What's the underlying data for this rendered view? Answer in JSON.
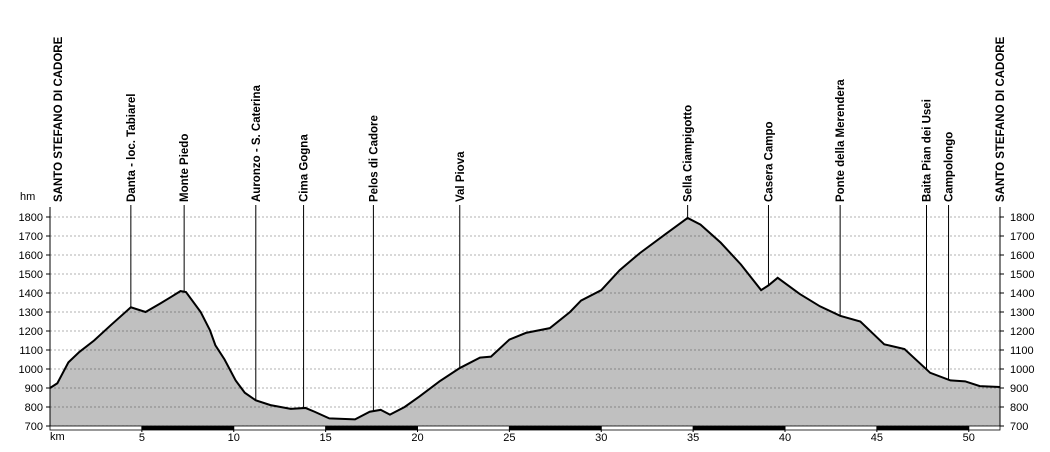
{
  "chart_data": {
    "type": "area",
    "y_label": "hm",
    "x_label": "km",
    "xlim": [
      0,
      51.7
    ],
    "ylim": [
      700,
      1800
    ],
    "xticks": [
      5,
      10,
      15,
      20,
      25,
      30,
      35,
      40,
      45,
      50
    ],
    "yticks": [
      700,
      800,
      900,
      1000,
      1100,
      1200,
      1300,
      1400,
      1500,
      1600,
      1700,
      1800
    ],
    "grid": true,
    "fill_color": "#c0c0c0",
    "line_color": "#000000",
    "x": [
      0,
      0.4,
      1.0,
      1.6,
      2.4,
      3.3,
      4.4,
      5.2,
      6.0,
      6.6,
      7.1,
      7.4,
      8.2,
      8.7,
      9.0,
      9.5,
      10.1,
      10.6,
      11.2,
      12.0,
      13.1,
      13.9,
      14.4,
      15.2,
      16.6,
      17.4,
      18.0,
      18.5,
      19.3,
      20.1,
      21.2,
      22.3,
      23.4,
      24.0,
      25.0,
      25.9,
      27.2,
      28.3,
      28.9,
      30.0,
      31.0,
      32.1,
      33.5,
      34.7,
      35.4,
      36.5,
      37.6,
      38.7,
      39.1,
      39.6,
      40.8,
      41.9,
      43.0,
      44.1,
      45.4,
      46.5,
      47.9,
      49.0,
      49.8,
      50.6,
      51.7
    ],
    "values": [
      900,
      925,
      1035,
      1090,
      1150,
      1230,
      1325,
      1300,
      1345,
      1380,
      1410,
      1405,
      1300,
      1205,
      1125,
      1050,
      940,
      875,
      835,
      810,
      790,
      795,
      775,
      740,
      735,
      775,
      785,
      760,
      800,
      855,
      935,
      1005,
      1060,
      1065,
      1155,
      1190,
      1215,
      1300,
      1360,
      1415,
      1520,
      1610,
      1710,
      1795,
      1760,
      1665,
      1550,
      1415,
      1440,
      1480,
      1395,
      1330,
      1280,
      1250,
      1130,
      1105,
      980,
      940,
      935,
      910,
      905
    ],
    "waypoints": [
      {
        "name": "SANTO STEFANO DI CADORE",
        "km": 0
      },
      {
        "name": "Danta - loc. Tabiarel",
        "km": 4.4
      },
      {
        "name": "Monte Piedo",
        "km": 7.3
      },
      {
        "name": "Auronzo - S. Caterina",
        "km": 11.2
      },
      {
        "name": "Cima Gogna",
        "km": 13.8
      },
      {
        "name": "Pelos di Cadore",
        "km": 17.6
      },
      {
        "name": "Val Piova",
        "km": 22.3
      },
      {
        "name": "Sella Ciampigotto",
        "km": 34.7
      },
      {
        "name": "Casera Campo",
        "km": 39.1
      },
      {
        "name": "Ponte della Merendera",
        "km": 43.0
      },
      {
        "name": "Baita Pian dei Usei",
        "km": 47.7
      },
      {
        "name": "Campolongo",
        "km": 48.9
      },
      {
        "name": "SANTO STEFANO DI CADORE",
        "km": 51.7
      }
    ]
  }
}
